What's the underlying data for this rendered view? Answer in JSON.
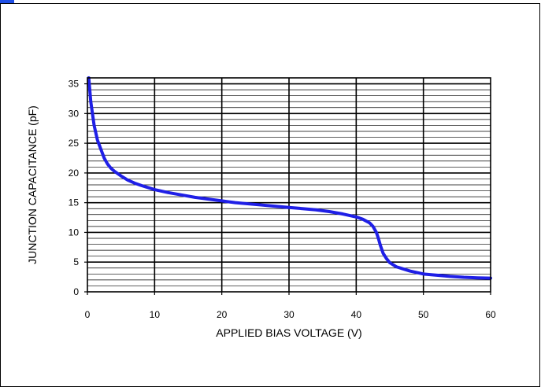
{
  "chart_data": {
    "type": "line",
    "title": "",
    "xlabel": "APPLIED BIAS VOLTAGE (V)",
    "ylabel": "JUNCTION CAPACITANCE (pF)",
    "xlim": [
      0,
      60
    ],
    "ylim": [
      0,
      36
    ],
    "xticks": [
      0,
      10,
      20,
      30,
      40,
      50,
      60
    ],
    "yticks": [
      0,
      5,
      10,
      15,
      20,
      25,
      30,
      35
    ],
    "grid": true,
    "legend": "none",
    "line_color": "#1f1fe6",
    "series": [
      {
        "x": [
          0.2,
          0.5,
          1,
          1.5,
          2,
          2.5,
          3,
          3.5,
          4,
          5,
          6,
          7,
          8,
          10,
          12,
          14,
          16,
          18,
          20,
          22,
          24,
          26,
          28,
          30,
          32,
          34,
          36,
          38,
          40,
          41,
          42,
          42.5,
          43,
          43.3,
          43.6,
          44,
          44.5,
          45,
          46,
          48,
          50,
          52,
          54,
          56,
          58,
          60
        ],
        "y": [
          36,
          32,
          28,
          25.5,
          24,
          22.5,
          21.5,
          20.8,
          20.3,
          19.5,
          18.8,
          18.3,
          17.9,
          17.2,
          16.7,
          16.3,
          15.9,
          15.6,
          15.3,
          15.0,
          14.8,
          14.6,
          14.4,
          14.2,
          14.0,
          13.8,
          13.5,
          13.1,
          12.6,
          12.2,
          11.6,
          11.0,
          10.0,
          9.0,
          7.8,
          6.5,
          5.6,
          4.9,
          4.2,
          3.5,
          3.0,
          2.8,
          2.6,
          2.45,
          2.35,
          2.3
        ]
      }
    ]
  },
  "colors": {
    "frame": "#000000",
    "gridline": "#000000",
    "line": "#1f1fe6",
    "accent_top": "#1f4fe6"
  }
}
